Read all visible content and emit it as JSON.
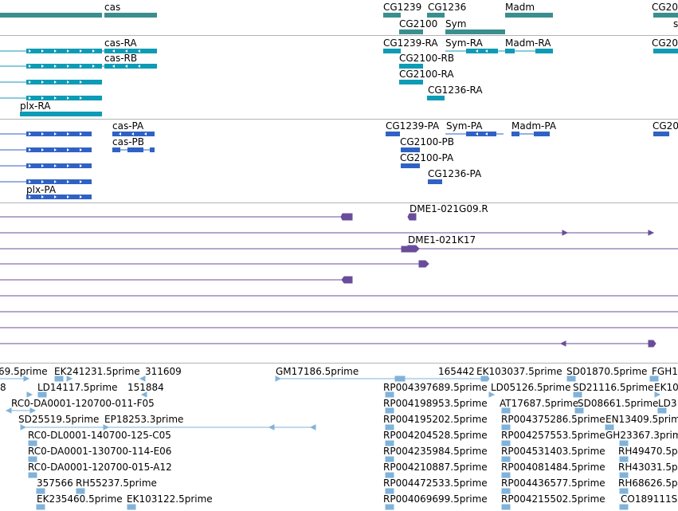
{
  "genes": {
    "labels": [
      "cas",
      "CG1239",
      "CG1236",
      "Madm",
      "CG20",
      "CG2100",
      "Sym"
    ]
  },
  "transcripts": {
    "labels": [
      "cas-RA",
      "cas-RB",
      "plx-RA",
      "CG1239-RA",
      "Sym-RA",
      "Madm-RA",
      "CG20",
      "CG2100-RB",
      "CG2100-RA",
      "CG1236-RA"
    ]
  },
  "proteins": {
    "labels": [
      "cas-PA",
      "cas-PB",
      "plx-PA",
      "CG1239-PA",
      "Sym-PA",
      "Madm-PA",
      "CG20",
      "CG2100-PB",
      "CG2100-PA",
      "CG1236-PA"
    ]
  },
  "clones": {
    "labels": [
      "DME1-021G09.R",
      "DME1-021K17"
    ]
  },
  "ests": {
    "labels": [
      "69.5prime",
      "EK241231.5prime",
      "311609",
      "GM17186.5prime",
      "165442",
      "EK103037.5prime",
      "SD01870.5prime",
      "FGH1",
      "8",
      "LD14117.5prime",
      "151884",
      "RP004397689.5prime",
      "LD05126.5prime",
      "SD21116.5prime",
      "EK10",
      "RC0-DA0001-120700-011-F05",
      "RP004198953.5prime",
      "AT17687.5prime",
      "SD08661.5prime",
      "LD3",
      "SD25519.5prime",
      "EP18253.3prime",
      "RP004195202.5prime",
      "RP004375286.5prime",
      "EN13409.5prime",
      "RC0-DL0001-140700-125-C05",
      "RP004204528.5prime",
      "RP004257553.5prime",
      "GH23367.3prime",
      "RC0-DA0001-130700-114-E06",
      "RP004235984.5prime",
      "RP004531403.5prime",
      "RH49470.5pr",
      "RC0-DA0001-120700-015-A12",
      "RP004210887.5prime",
      "RP004081484.5prime",
      "RH43031.5pr",
      "357566",
      "RH55237.5prime",
      "RP004472533.5prime",
      "RP004436577.5prime",
      "RH68626.5pr",
      "EK235460.5prime",
      "EK103122.5prime",
      "RP004069699.5prime",
      "RP004215502.5prime",
      "CO189111S"
    ]
  },
  "colors": {
    "gene": "#3a8e8e",
    "transcript": "#0d9bb5",
    "protein": "#2f62c4",
    "clone": "#6a4d9a",
    "est": "#7fb3db",
    "separator": "#b4b4b4"
  }
}
